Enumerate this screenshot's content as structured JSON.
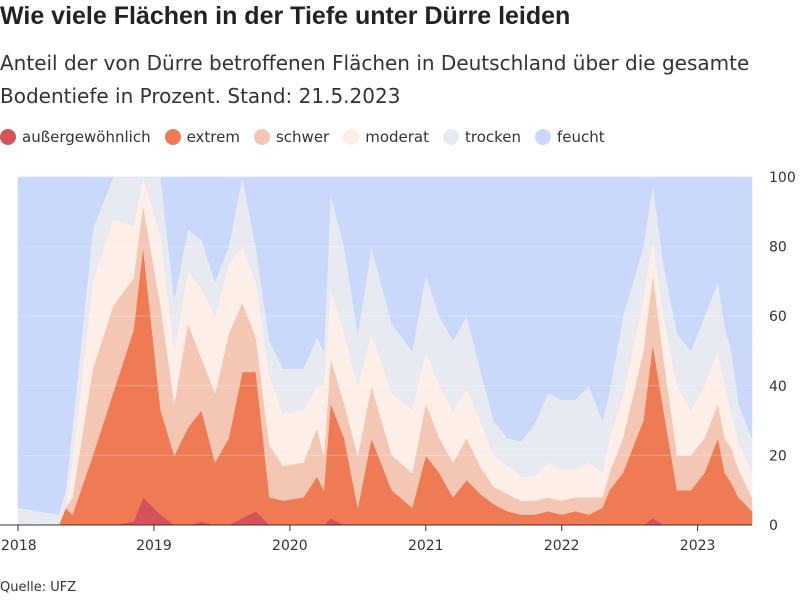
{
  "header": {
    "title": "Wie viele Flächen in der Tiefe unter Dürre leiden",
    "subtitle": "Anteil der von Dürre betroffenen Flächen in Deutschland über die gesamte Bodentiefe in Prozent. Stand: 21.5.2023"
  },
  "footer": {
    "source": "Quelle: UFZ"
  },
  "chart_data": {
    "type": "area",
    "stacked": true,
    "title": "Wie viele Flächen in der Tiefe unter Dürre leiden",
    "subtitle": "Anteil der von Dürre betroffenen Flächen in Deutschland über die gesamte Bodentiefe in Prozent. Stand: 21.5.2023",
    "xlim": [
      2018.0,
      2023.4
    ],
    "ylim": [
      0,
      100
    ],
    "x_ticks": [
      2018,
      2019,
      2020,
      2021,
      2022,
      2023
    ],
    "y_ticks": [
      0,
      20,
      40,
      60,
      80,
      100
    ],
    "y_axis_position": "right",
    "legend_position": "top-left",
    "grid": true,
    "x": [
      2018.0,
      2018.3,
      2018.35,
      2018.4,
      2018.55,
      2018.7,
      2018.85,
      2018.92,
      2019.05,
      2019.15,
      2019.25,
      2019.35,
      2019.45,
      2019.55,
      2019.65,
      2019.75,
      2019.85,
      2019.95,
      2020.1,
      2020.2,
      2020.25,
      2020.3,
      2020.4,
      2020.5,
      2020.6,
      2020.75,
      2020.9,
      2021.0,
      2021.1,
      2021.2,
      2021.3,
      2021.4,
      2021.5,
      2021.6,
      2021.7,
      2021.8,
      2021.9,
      2022.0,
      2022.1,
      2022.2,
      2022.3,
      2022.35,
      2022.45,
      2022.6,
      2022.67,
      2022.75,
      2022.85,
      2022.95,
      2023.05,
      2023.15,
      2023.2,
      2023.25,
      2023.3,
      2023.4
    ],
    "series": [
      {
        "name": "außergewöhnlich",
        "color": "#d6525a",
        "values": [
          0,
          0,
          0,
          0,
          0,
          0,
          1,
          8,
          3,
          0,
          0,
          1,
          0,
          0,
          2,
          4,
          0,
          0,
          0,
          0,
          0,
          2,
          0,
          0,
          0,
          0,
          0,
          0,
          0,
          0,
          0,
          0,
          0,
          0,
          0,
          0,
          0,
          0,
          0,
          0,
          0,
          0,
          0,
          0,
          2,
          0,
          0,
          0,
          0,
          0,
          0,
          0,
          0,
          0
        ]
      },
      {
        "name": "extrem",
        "color": "#ef7b55",
        "values": [
          0,
          0,
          5,
          3,
          20,
          38,
          55,
          72,
          30,
          20,
          28,
          32,
          18,
          25,
          42,
          40,
          8,
          7,
          8,
          14,
          10,
          33,
          25,
          5,
          25,
          10,
          5,
          20,
          15,
          8,
          13,
          9,
          6,
          4,
          3,
          3,
          4,
          3,
          4,
          3,
          5,
          10,
          15,
          30,
          50,
          33,
          10,
          10,
          15,
          25,
          15,
          12,
          8,
          4
        ]
      },
      {
        "name": "schwer",
        "color": "#f4c7b4",
        "values": [
          0,
          0,
          0,
          5,
          25,
          25,
          15,
          12,
          30,
          15,
          30,
          15,
          20,
          30,
          20,
          10,
          15,
          10,
          10,
          14,
          10,
          13,
          10,
          15,
          15,
          10,
          10,
          15,
          10,
          10,
          12,
          8,
          5,
          5,
          4,
          4,
          4,
          4,
          4,
          5,
          3,
          5,
          10,
          20,
          20,
          15,
          10,
          10,
          10,
          10,
          10,
          10,
          8,
          4
        ]
      },
      {
        "name": "moderat",
        "color": "#fdeee8",
        "values": [
          0,
          0,
          0,
          10,
          25,
          25,
          15,
          8,
          20,
          15,
          15,
          20,
          22,
          20,
          16,
          16,
          20,
          15,
          15,
          12,
          20,
          20,
          20,
          20,
          15,
          18,
          18,
          15,
          15,
          15,
          14,
          13,
          9,
          8,
          7,
          7,
          10,
          9,
          8,
          10,
          7,
          10,
          12,
          15,
          10,
          12,
          20,
          13,
          15,
          15,
          15,
          10,
          8,
          7
        ]
      },
      {
        "name": "trocken",
        "color": "#e7ebf1",
        "values": [
          5,
          3,
          5,
          10,
          15,
          12,
          14,
          0,
          17,
          15,
          12,
          14,
          10,
          5,
          20,
          10,
          10,
          13,
          12,
          14,
          10,
          27,
          25,
          15,
          25,
          20,
          17,
          22,
          20,
          20,
          21,
          15,
          10,
          8,
          10,
          15,
          20,
          20,
          20,
          22,
          15,
          13,
          23,
          15,
          16,
          15,
          15,
          17,
          20,
          20,
          17,
          18,
          11,
          10
        ]
      },
      {
        "name": "feucht",
        "color": "#c9d8fb",
        "values": [
          95,
          97,
          90,
          72,
          15,
          0,
          0,
          0,
          0,
          35,
          15,
          18,
          30,
          20,
          0,
          20,
          47,
          55,
          55,
          46,
          50,
          5,
          20,
          45,
          20,
          42,
          50,
          28,
          40,
          47,
          40,
          55,
          70,
          75,
          76,
          71,
          62,
          64,
          64,
          60,
          70,
          62,
          40,
          20,
          2,
          25,
          45,
          50,
          40,
          30,
          43,
          50,
          65,
          75
        ]
      }
    ]
  }
}
